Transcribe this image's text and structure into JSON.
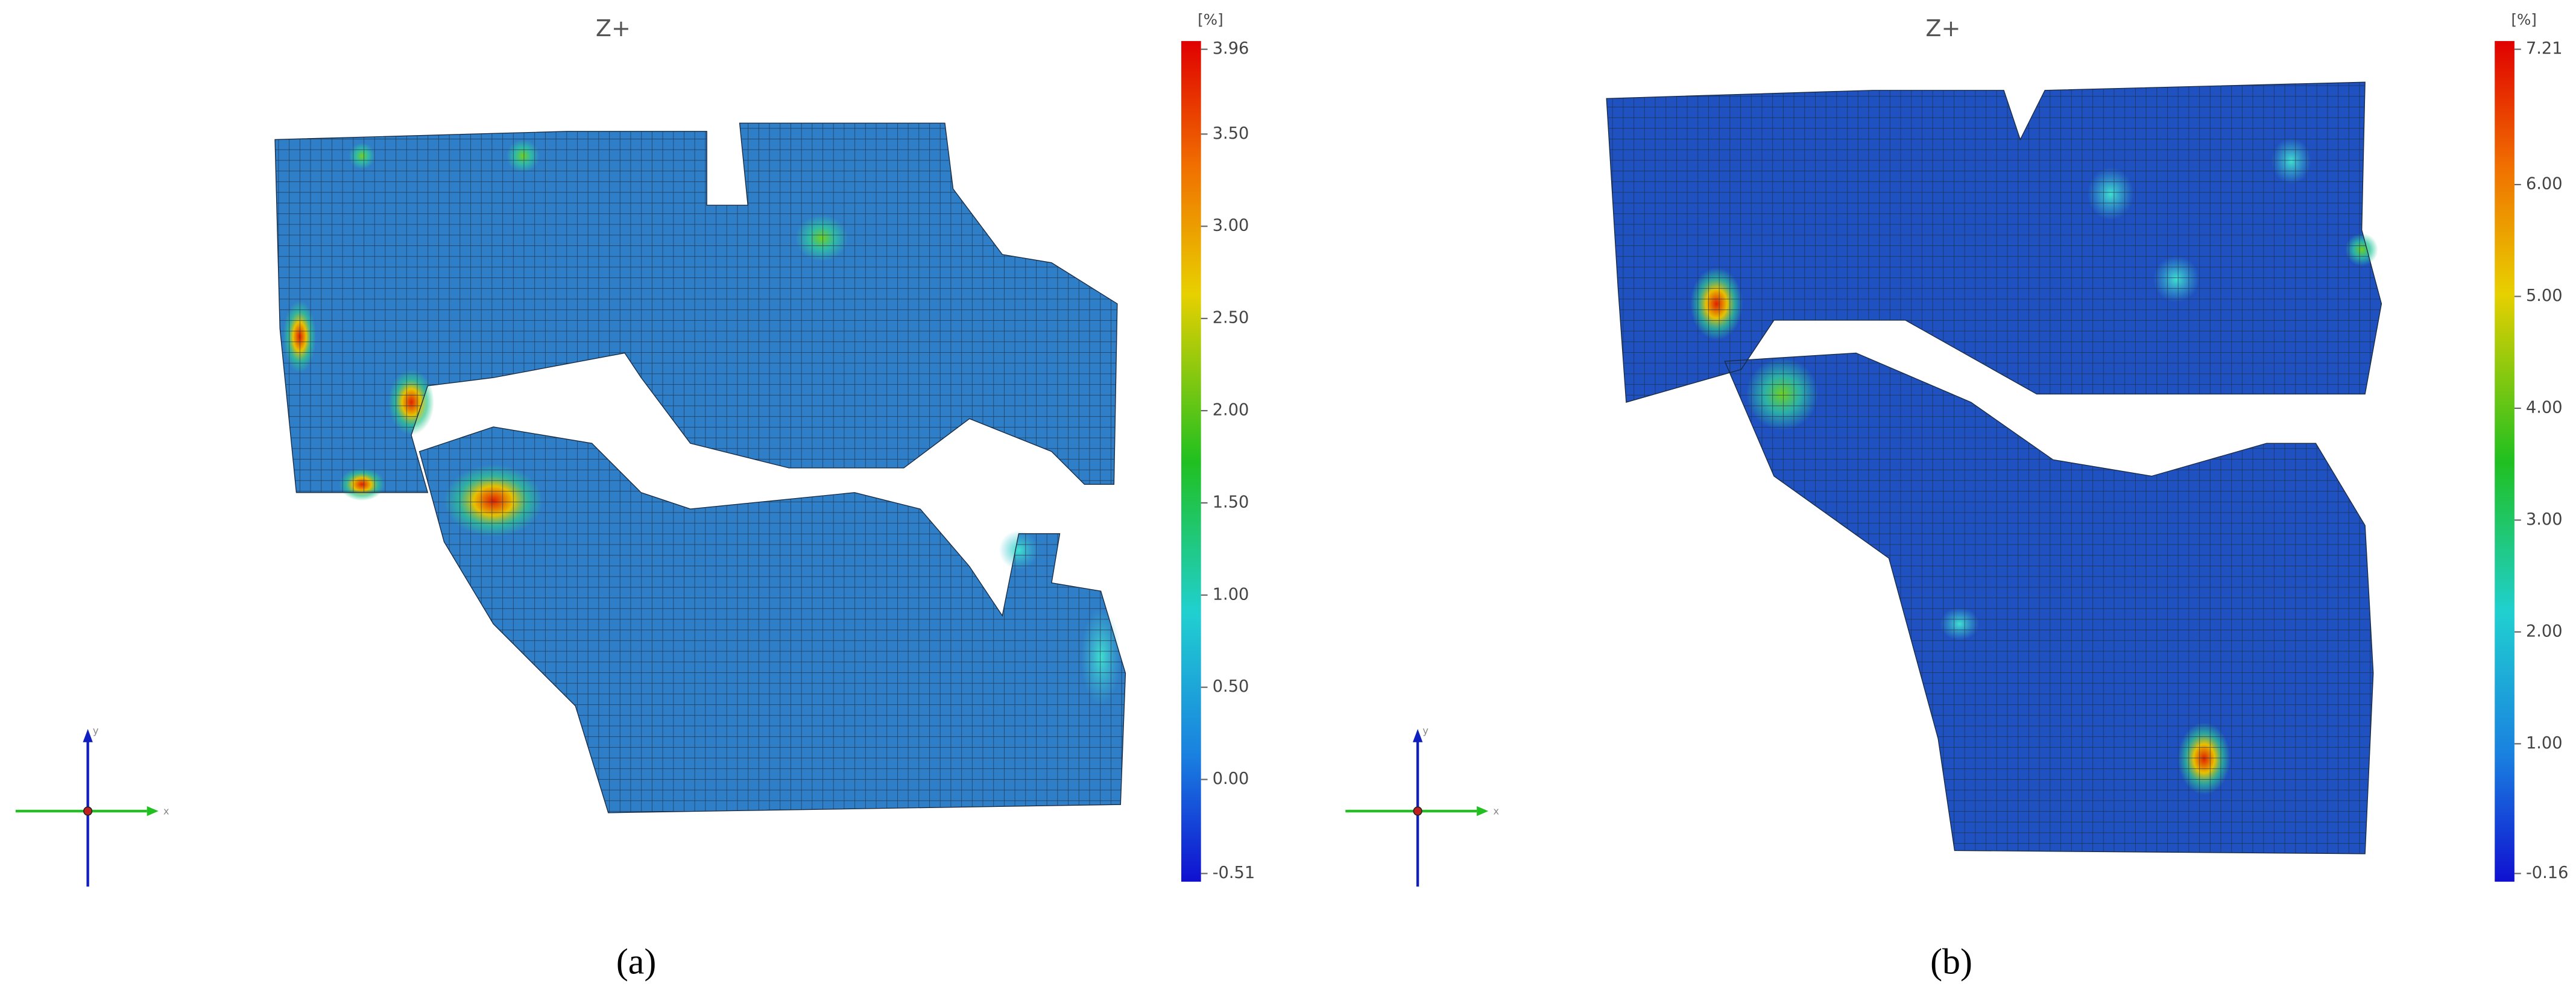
{
  "panels": [
    {
      "title": "Z+",
      "unit": "[%]",
      "caption": "(a)",
      "axis_labels": {
        "x": "x",
        "y": "y"
      },
      "colorbar_ticks": [
        3.96,
        {
          "value": 3.5,
          "label": "3.50"
        },
        {
          "value": 3,
          "label": "3.00"
        },
        {
          "value": 2.5,
          "label": "2.50"
        },
        {
          "value": 2,
          "label": "2.00"
        },
        {
          "value": 1.5,
          "label": "1.50"
        },
        {
          "value": 1,
          "label": "1.00"
        },
        {
          "value": 0.5,
          "label": "0.50"
        },
        {
          "value": 0,
          "label": "0.00"
        },
        -0.51
      ]
    },
    {
      "title": "Z+",
      "unit": "[%]",
      "caption": "(b)",
      "axis_labels": {
        "x": "x",
        "y": "y"
      },
      "colorbar_ticks": [
        7.21,
        {
          "value": 6,
          "label": "6.00"
        },
        {
          "value": 5,
          "label": "5.00"
        },
        {
          "value": 4,
          "label": "4.00"
        },
        {
          "value": 3,
          "label": "3.00"
        },
        {
          "value": 2,
          "label": "2.00"
        },
        {
          "value": 1,
          "label": "1.00"
        },
        -0.16
      ]
    }
  ]
}
